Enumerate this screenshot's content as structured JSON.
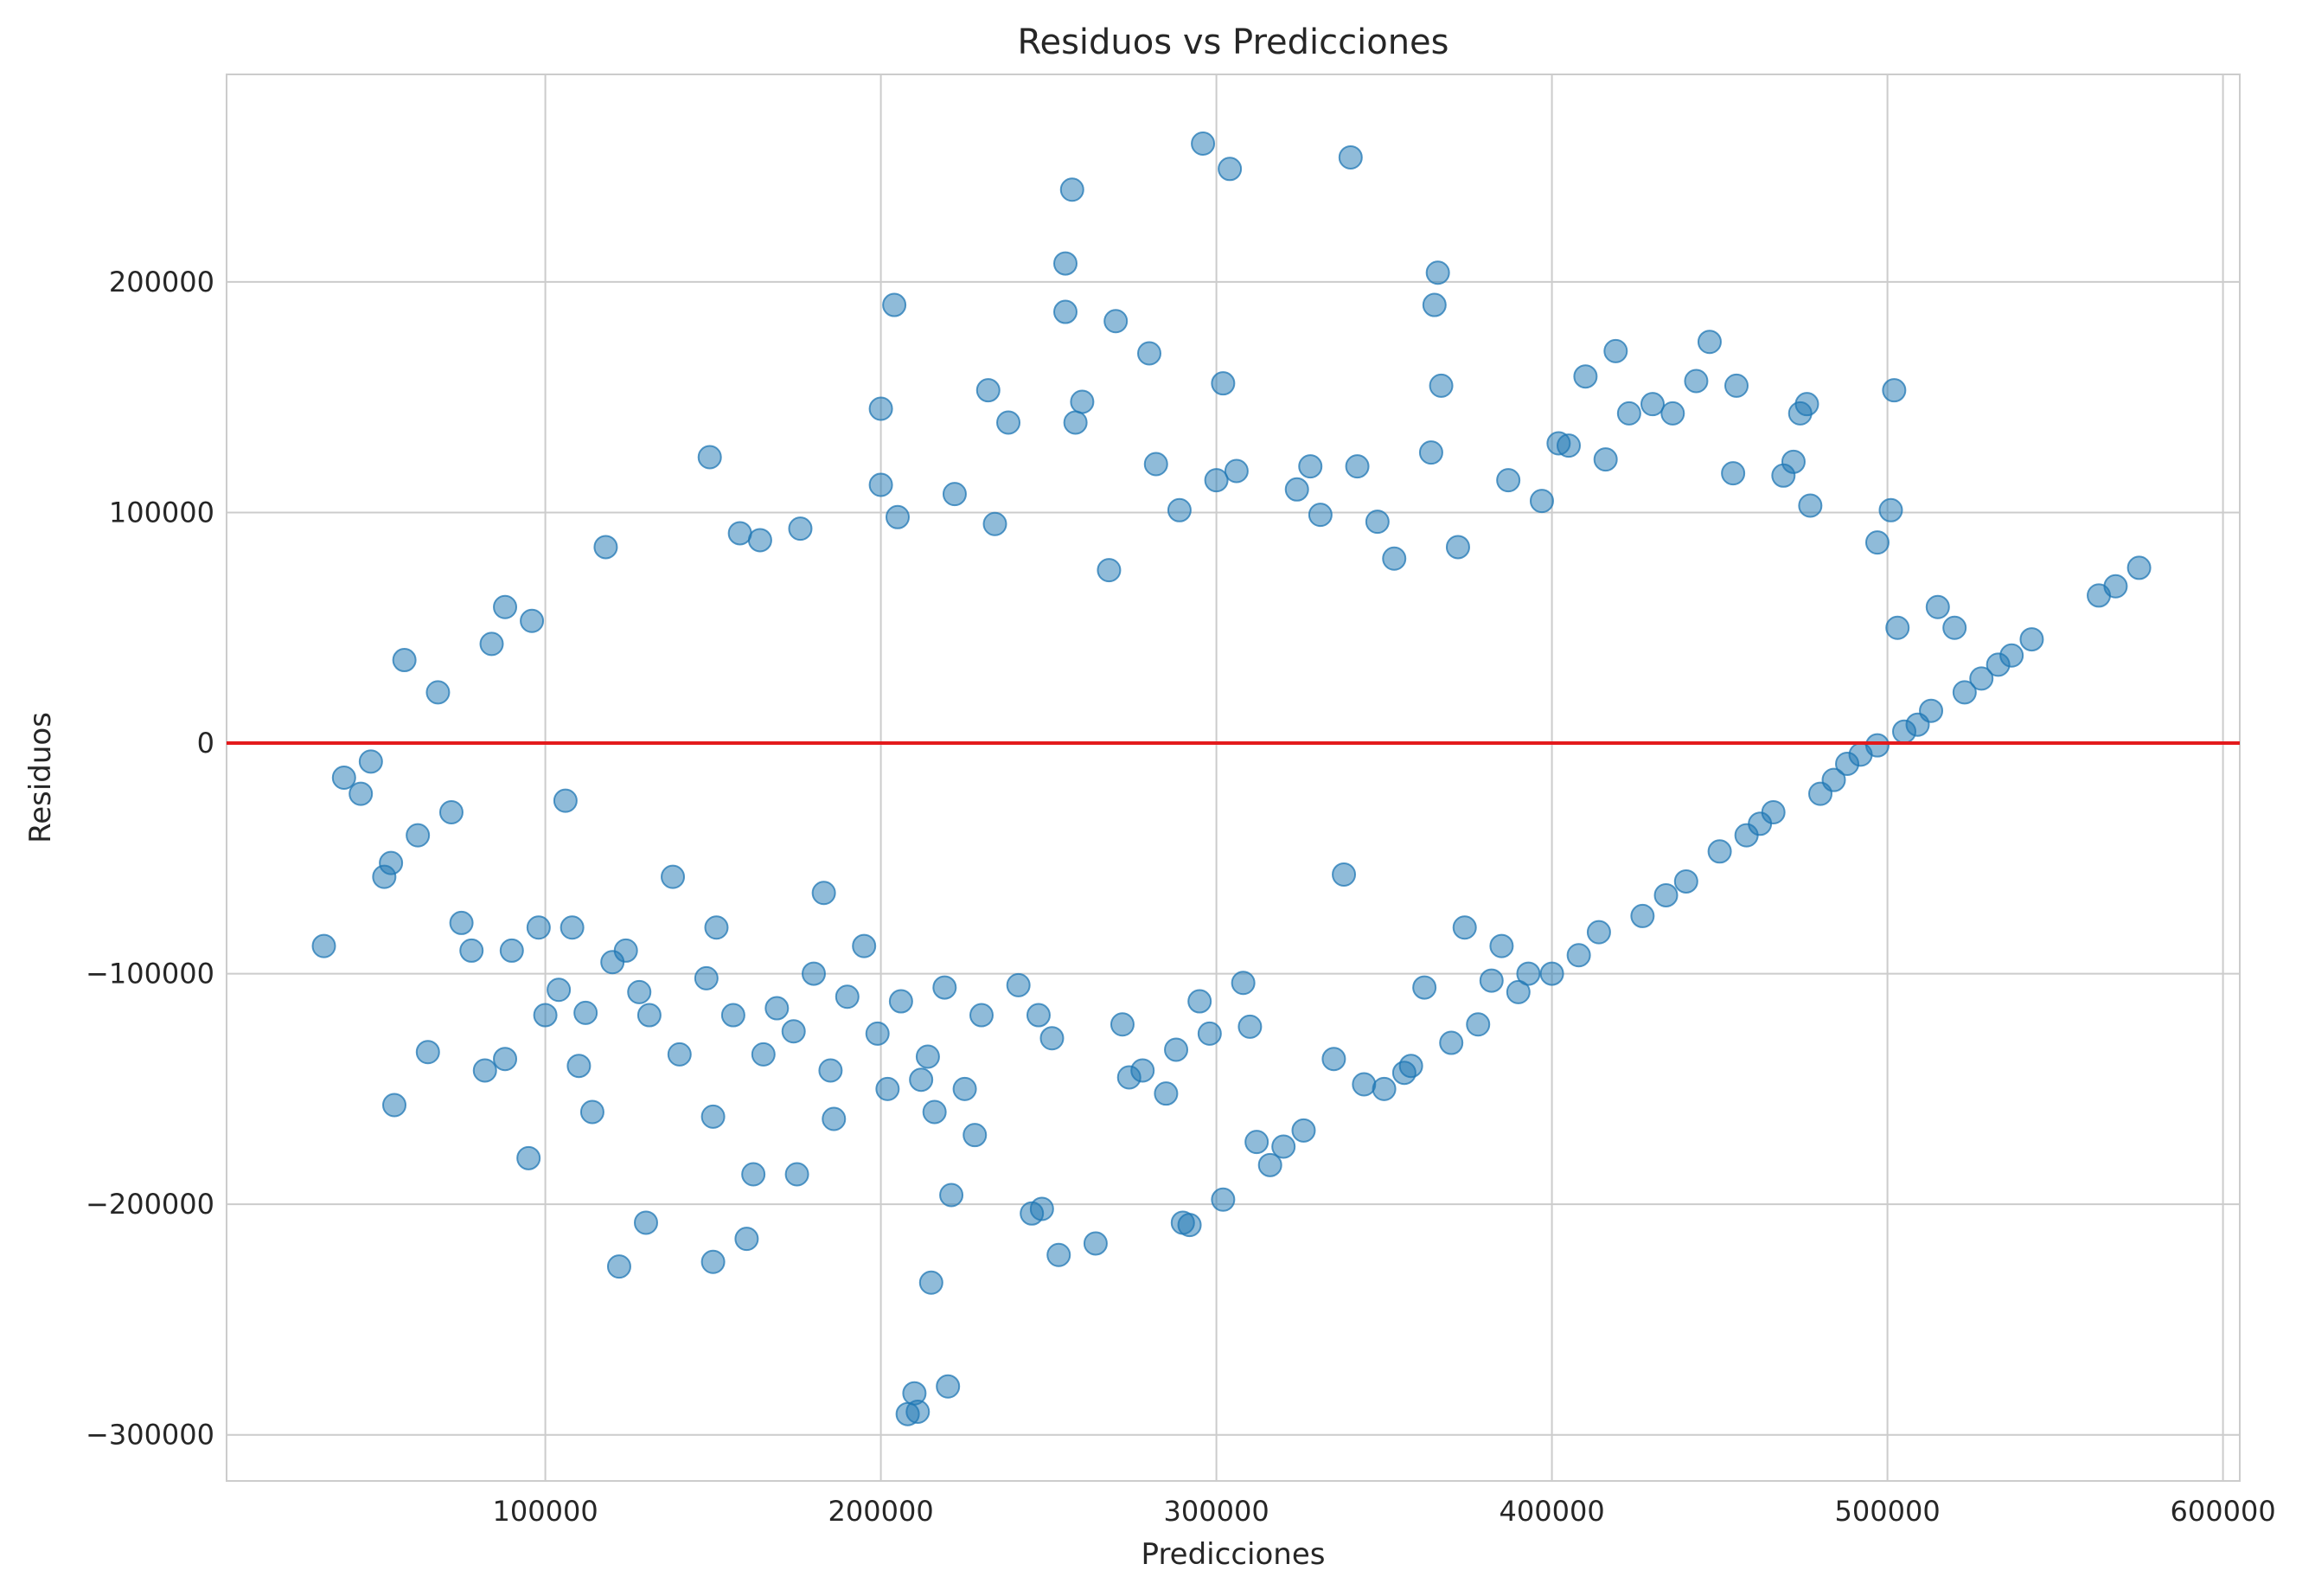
{
  "chart_data": {
    "type": "scatter",
    "title": "Residuos vs Predicciones",
    "xlabel": "Predicciones",
    "ylabel": "Residuos",
    "xlim": [
      5000,
      605000
    ],
    "ylim": [
      -320000,
      290000
    ],
    "xticks": [
      100000,
      200000,
      300000,
      400000,
      500000,
      600000
    ],
    "xtick_labels": [
      "100000",
      "200000",
      "300000",
      "400000",
      "500000",
      "600000"
    ],
    "yticks": [
      -300000,
      -200000,
      -100000,
      0,
      100000,
      200000
    ],
    "ytick_labels": [
      "−300000",
      "−200000",
      "−100000",
      "0",
      "100000",
      "200000"
    ],
    "grid": true,
    "reference_line": {
      "y": 0,
      "color": "#e31a1c"
    },
    "marker_color": "#1f77b4",
    "marker_alpha": 0.5,
    "series": [
      {
        "points": [
          [
            34000,
            -88000
          ],
          [
            40000,
            -15000
          ],
          [
            45000,
            -22000
          ],
          [
            48000,
            -8000
          ],
          [
            52000,
            -58000
          ],
          [
            54000,
            -52000
          ],
          [
            55000,
            -157000
          ],
          [
            58000,
            36000
          ],
          [
            62000,
            -40000
          ],
          [
            65000,
            -134000
          ],
          [
            68000,
            22000
          ],
          [
            72000,
            -30000
          ],
          [
            75000,
            -78000
          ],
          [
            78000,
            -90000
          ],
          [
            82000,
            -142000
          ],
          [
            84000,
            43000
          ],
          [
            88000,
            59000
          ],
          [
            88000,
            -137000
          ],
          [
            90000,
            -90000
          ],
          [
            95000,
            -180000
          ],
          [
            96000,
            53000
          ],
          [
            98000,
            -80000
          ],
          [
            100000,
            -118000
          ],
          [
            104000,
            -107000
          ],
          [
            106000,
            -25000
          ],
          [
            108000,
            -80000
          ],
          [
            110000,
            -140000
          ],
          [
            112000,
            -117000
          ],
          [
            114000,
            -160000
          ],
          [
            118000,
            85000
          ],
          [
            120000,
            -95000
          ],
          [
            122000,
            -227000
          ],
          [
            124000,
            -90000
          ],
          [
            128000,
            -108000
          ],
          [
            130000,
            -208000
          ],
          [
            131000,
            -118000
          ],
          [
            138000,
            -58000
          ],
          [
            140000,
            -135000
          ],
          [
            148000,
            -102000
          ],
          [
            149000,
            124000
          ],
          [
            150000,
            -225000
          ],
          [
            150000,
            -162000
          ],
          [
            151000,
            -80000
          ],
          [
            156000,
            -118000
          ],
          [
            158000,
            91000
          ],
          [
            160000,
            -215000
          ],
          [
            162000,
            -187000
          ],
          [
            164000,
            88000
          ],
          [
            165000,
            -135000
          ],
          [
            169000,
            -115000
          ],
          [
            174000,
            -125000
          ],
          [
            175000,
            -187000
          ],
          [
            176000,
            93000
          ],
          [
            180000,
            -100000
          ],
          [
            183000,
            -65000
          ],
          [
            185000,
            -142000
          ],
          [
            186000,
            -163000
          ],
          [
            190000,
            -110000
          ],
          [
            195000,
            -88000
          ],
          [
            199000,
            -126000
          ],
          [
            200000,
            145000
          ],
          [
            200000,
            112000
          ],
          [
            202000,
            -150000
          ],
          [
            204000,
            190000
          ],
          [
            205000,
            98000
          ],
          [
            206000,
            -112000
          ],
          [
            208000,
            -291000
          ],
          [
            210000,
            -282000
          ],
          [
            211000,
            -290000
          ],
          [
            212000,
            -146000
          ],
          [
            214000,
            -136000
          ],
          [
            215000,
            -234000
          ],
          [
            216000,
            -160000
          ],
          [
            219000,
            -106000
          ],
          [
            220000,
            -279000
          ],
          [
            221000,
            -196000
          ],
          [
            222000,
            108000
          ],
          [
            225000,
            -150000
          ],
          [
            228000,
            -170000
          ],
          [
            230000,
            -118000
          ],
          [
            232000,
            153000
          ],
          [
            234000,
            95000
          ],
          [
            238000,
            139000
          ],
          [
            241000,
            -105000
          ],
          [
            245000,
            -204000
          ],
          [
            247000,
            -118000
          ],
          [
            248000,
            -202000
          ],
          [
            251000,
            -128000
          ],
          [
            253000,
            -222000
          ],
          [
            255000,
            208000
          ],
          [
            255000,
            187000
          ],
          [
            257000,
            240000
          ],
          [
            258000,
            139000
          ],
          [
            260000,
            148000
          ],
          [
            264000,
            -217000
          ],
          [
            268000,
            75000
          ],
          [
            270000,
            183000
          ],
          [
            272000,
            -122000
          ],
          [
            274000,
            -145000
          ],
          [
            278000,
            -142000
          ],
          [
            280000,
            169000
          ],
          [
            282000,
            121000
          ],
          [
            285000,
            -152000
          ],
          [
            288000,
            -133000
          ],
          [
            289000,
            101000
          ],
          [
            290000,
            -208000
          ],
          [
            292000,
            -209000
          ],
          [
            295000,
            -112000
          ],
          [
            296000,
            260000
          ],
          [
            298000,
            -126000
          ],
          [
            300000,
            114000
          ],
          [
            302000,
            -198000
          ],
          [
            302000,
            156000
          ],
          [
            304000,
            249000
          ],
          [
            306000,
            118000
          ],
          [
            308000,
            -104000
          ],
          [
            310000,
            -123000
          ],
          [
            312000,
            -173000
          ],
          [
            316000,
            -183000
          ],
          [
            320000,
            -175000
          ],
          [
            324000,
            110000
          ],
          [
            326000,
            -168000
          ],
          [
            328000,
            120000
          ],
          [
            331000,
            99000
          ],
          [
            335000,
            -137000
          ],
          [
            338000,
            -57000
          ],
          [
            340000,
            254000
          ],
          [
            342000,
            120000
          ],
          [
            344000,
            -148000
          ],
          [
            348000,
            96000
          ],
          [
            350000,
            -150000
          ],
          [
            353000,
            80000
          ],
          [
            356000,
            -143000
          ],
          [
            358000,
            -140000
          ],
          [
            362000,
            -106000
          ],
          [
            364000,
            126000
          ],
          [
            365000,
            190000
          ],
          [
            366000,
            204000
          ],
          [
            367000,
            155000
          ],
          [
            370000,
            -130000
          ],
          [
            372000,
            85000
          ],
          [
            374000,
            -80000
          ],
          [
            378000,
            -122000
          ],
          [
            382000,
            -103000
          ],
          [
            385000,
            -88000
          ],
          [
            387000,
            114000
          ],
          [
            390000,
            -108000
          ],
          [
            393000,
            -100000
          ],
          [
            397000,
            105000
          ],
          [
            400000,
            -100000
          ],
          [
            402000,
            130000
          ],
          [
            405000,
            129000
          ],
          [
            408000,
            -92000
          ],
          [
            410000,
            159000
          ],
          [
            414000,
            -82000
          ],
          [
            416000,
            123000
          ],
          [
            419000,
            170000
          ],
          [
            423000,
            143000
          ],
          [
            427000,
            -75000
          ],
          [
            430000,
            147000
          ],
          [
            434000,
            -66000
          ],
          [
            436000,
            143000
          ],
          [
            440000,
            -60000
          ],
          [
            443000,
            157000
          ],
          [
            447000,
            174000
          ],
          [
            450000,
            -47000
          ],
          [
            454000,
            117000
          ],
          [
            455000,
            155000
          ],
          [
            458000,
            -40000
          ],
          [
            462000,
            -35000
          ],
          [
            466000,
            -30000
          ],
          [
            469000,
            116000
          ],
          [
            472000,
            122000
          ],
          [
            474000,
            143000
          ],
          [
            476000,
            147000
          ],
          [
            477000,
            103000
          ],
          [
            480000,
            -22000
          ],
          [
            484000,
            -16000
          ],
          [
            488000,
            -9000
          ],
          [
            492000,
            -5000
          ],
          [
            497000,
            -1000
          ],
          [
            497000,
            87000
          ],
          [
            501000,
            101000
          ],
          [
            502000,
            153000
          ],
          [
            503000,
            50000
          ],
          [
            505000,
            5000
          ],
          [
            509000,
            8000
          ],
          [
            513000,
            14000
          ],
          [
            515000,
            59000
          ],
          [
            520000,
            50000
          ],
          [
            523000,
            22000
          ],
          [
            528000,
            28000
          ],
          [
            533000,
            34000
          ],
          [
            537000,
            38000
          ],
          [
            543000,
            45000
          ],
          [
            563000,
            64000
          ],
          [
            568000,
            68000
          ],
          [
            575000,
            76000
          ]
        ]
      }
    ]
  }
}
